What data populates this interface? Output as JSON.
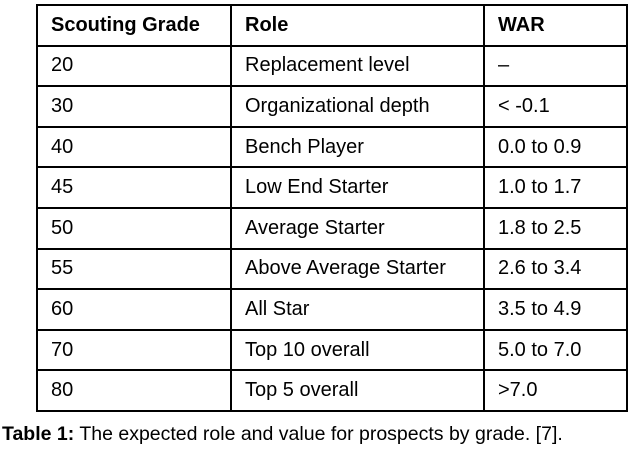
{
  "table": {
    "columns": [
      "Scouting Grade",
      "Role",
      "WAR"
    ],
    "rows": [
      {
        "grade": "20",
        "role": "Replacement level",
        "war": "–"
      },
      {
        "grade": "30",
        "role": "Organizational depth",
        "war": "< -0.1"
      },
      {
        "grade": "40",
        "role": "Bench Player",
        "war": "0.0 to 0.9"
      },
      {
        "grade": "45",
        "role": "Low End Starter",
        "war": "1.0 to 1.7"
      },
      {
        "grade": "50",
        "role": "Average Starter",
        "war": "1.8 to 2.5"
      },
      {
        "grade": "55",
        "role": "Above Average Starter",
        "war": "2.6 to 3.4"
      },
      {
        "grade": "60",
        "role": "All Star",
        "war": "3.5 to 4.9"
      },
      {
        "grade": "70",
        "role": "Top 10 overall",
        "war": "5.0 to 7.0"
      },
      {
        "grade": "80",
        "role": "Top 5 overall",
        "war": ">7.0"
      }
    ]
  },
  "caption": {
    "label": "Table 1:",
    "text": "The expected role and value for prospects by grade. [7]."
  }
}
